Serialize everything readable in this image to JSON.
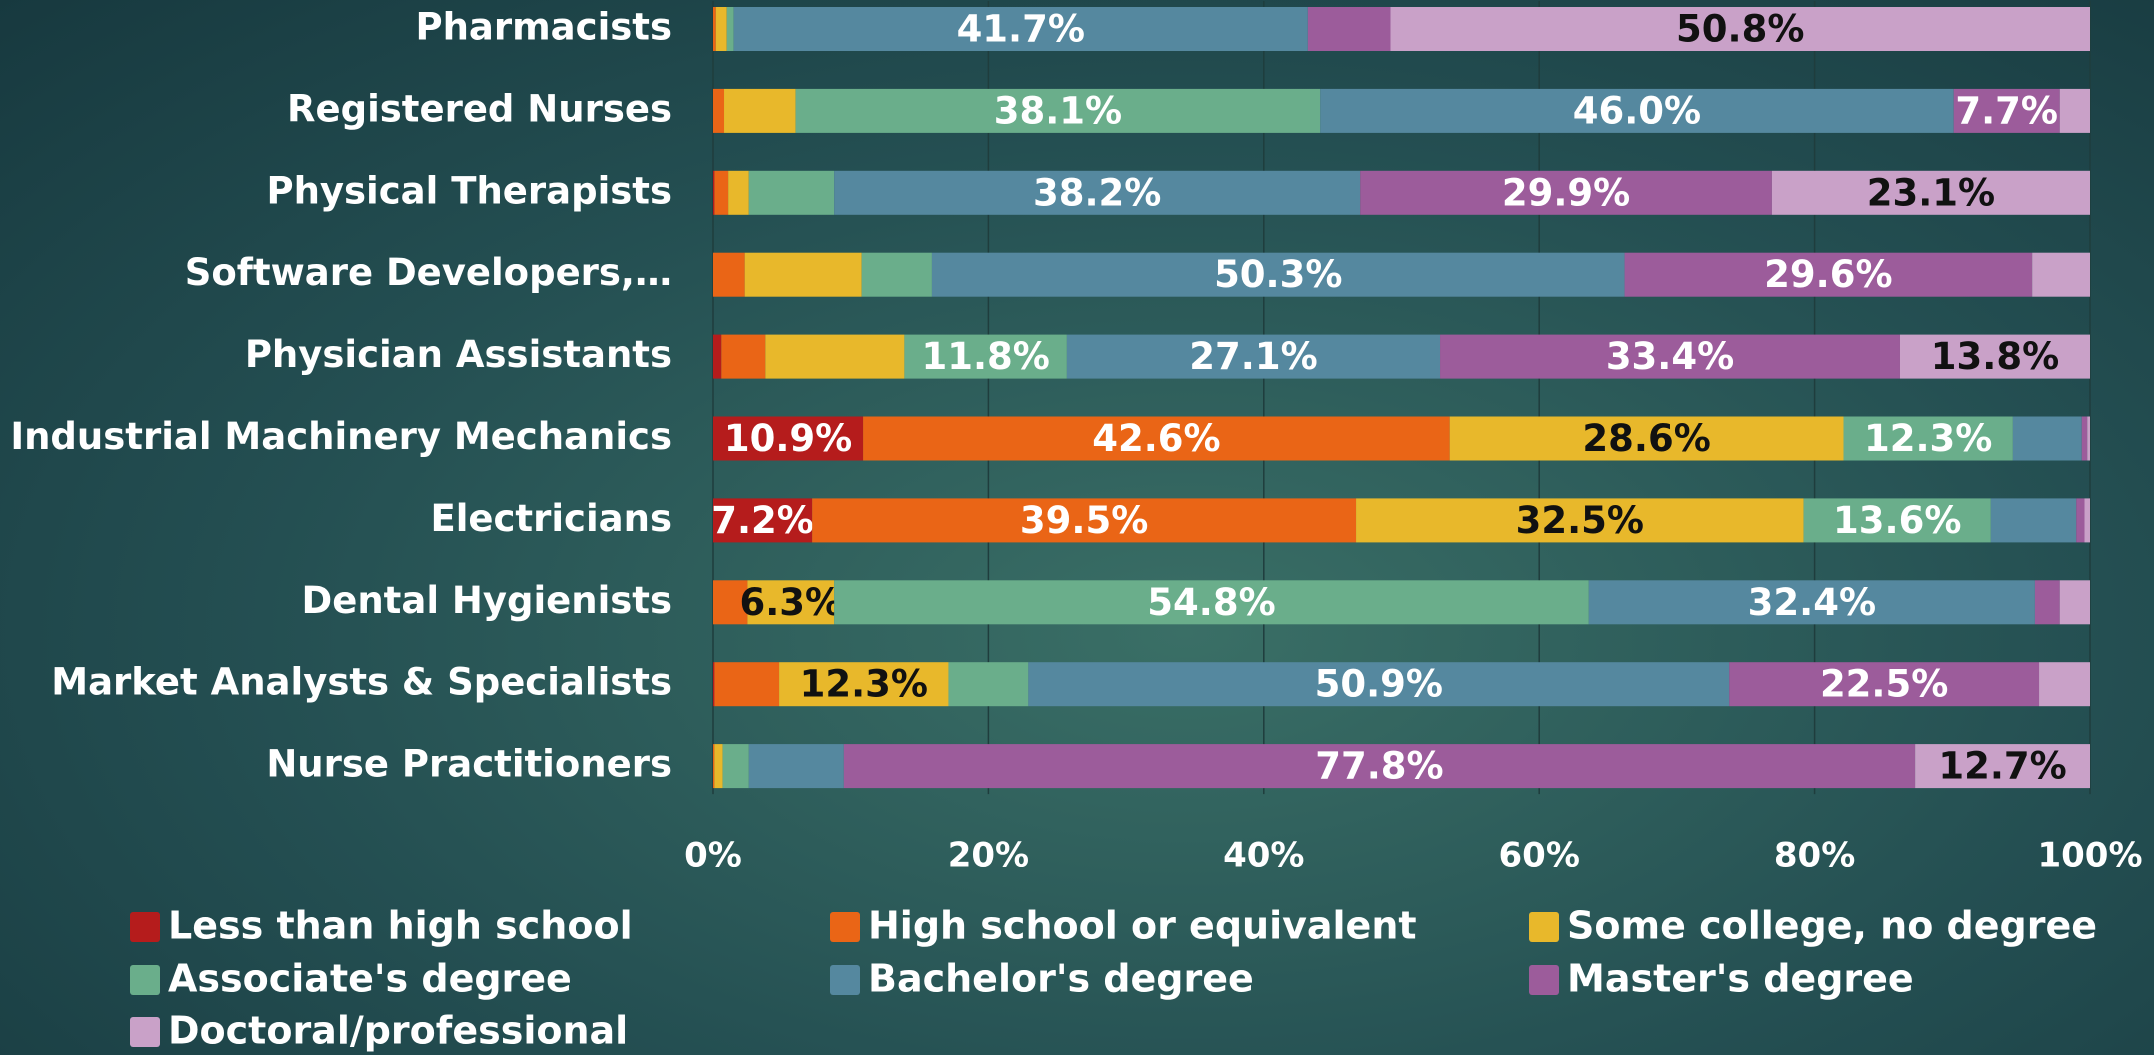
{
  "chart_data": {
    "type": "stacked_bar_horizontal",
    "categories": [
      "Pharmacists",
      "Registered Nurses",
      "Physical Therapists",
      "Software Developers,…",
      "Physician Assistants",
      "Industrial Machinery Mechanics",
      "Electricians",
      "Dental Hygienists",
      "Market Analysts & Specialists",
      "Nurse Practitioners"
    ],
    "series": [
      {
        "name": "Less than high school",
        "color": "#b51c1c",
        "values": [
          0,
          0,
          0.1,
          0,
          0.6,
          10.9,
          7.2,
          0,
          0.1,
          0
        ],
        "value_labels": [
          null,
          null,
          null,
          null,
          null,
          "10.9%",
          "7.2%",
          null,
          null,
          null
        ]
      },
      {
        "name": "High school or equivalent",
        "color": "#ea6516",
        "values": [
          0.2,
          0.8,
          1.0,
          2.3,
          3.2,
          42.6,
          39.5,
          2.5,
          4.7,
          0.1
        ],
        "value_labels": [
          null,
          null,
          null,
          null,
          null,
          "42.6%",
          "39.5%",
          null,
          null,
          null
        ]
      },
      {
        "name": "Some college, no degree",
        "color": "#e8b82b",
        "values": [
          0.8,
          5.2,
          1.5,
          8.5,
          10.1,
          28.6,
          32.5,
          6.3,
          12.3,
          0.6
        ],
        "value_labels": [
          null,
          null,
          null,
          null,
          null,
          "28.6%",
          "32.5%",
          "6.3%",
          "12.3%",
          null
        ]
      },
      {
        "name": "Associate's degree",
        "color": "#6aae8b",
        "values": [
          0.5,
          38.1,
          6.2,
          5.1,
          11.8,
          12.3,
          13.6,
          54.8,
          5.8,
          1.9
        ],
        "value_labels": [
          null,
          "38.1%",
          null,
          null,
          "11.8%",
          "12.3%",
          "13.6%",
          "54.8%",
          null,
          null
        ]
      },
      {
        "name": "Bachelor's degree",
        "color": "#55889f",
        "values": [
          41.7,
          46.0,
          38.2,
          50.3,
          27.1,
          5.0,
          6.2,
          32.4,
          50.9,
          6.9
        ],
        "value_labels": [
          "41.7%",
          "46.0%",
          "38.2%",
          "50.3%",
          "27.1%",
          null,
          null,
          "32.4%",
          "50.9%",
          null
        ]
      },
      {
        "name": "Master's degree",
        "color": "#9c5c9b",
        "values": [
          6.0,
          7.7,
          29.9,
          29.6,
          33.4,
          0.4,
          0.6,
          1.8,
          22.5,
          77.8
        ],
        "value_labels": [
          null,
          "7.7%",
          "29.9%",
          "29.6%",
          "33.4%",
          null,
          null,
          null,
          "22.5%",
          "77.8%"
        ]
      },
      {
        "name": "Doctoral/professional",
        "color": "#c9a1c8",
        "values": [
          50.8,
          2.2,
          23.1,
          4.2,
          13.8,
          0.2,
          0.4,
          2.2,
          3.7,
          12.7
        ],
        "value_labels": [
          "50.8%",
          null,
          "23.1%",
          null,
          "13.8%",
          null,
          null,
          null,
          null,
          "12.7%"
        ]
      }
    ],
    "xlim": [
      0,
      100
    ],
    "xticks": [
      {
        "value": 0,
        "label": "0%"
      },
      {
        "value": 20,
        "label": "20%"
      },
      {
        "value": 40,
        "label": "40%"
      },
      {
        "value": 60,
        "label": "60%"
      },
      {
        "value": 80,
        "label": "80%"
      },
      {
        "value": 100,
        "label": "100%"
      }
    ],
    "grid": true
  }
}
